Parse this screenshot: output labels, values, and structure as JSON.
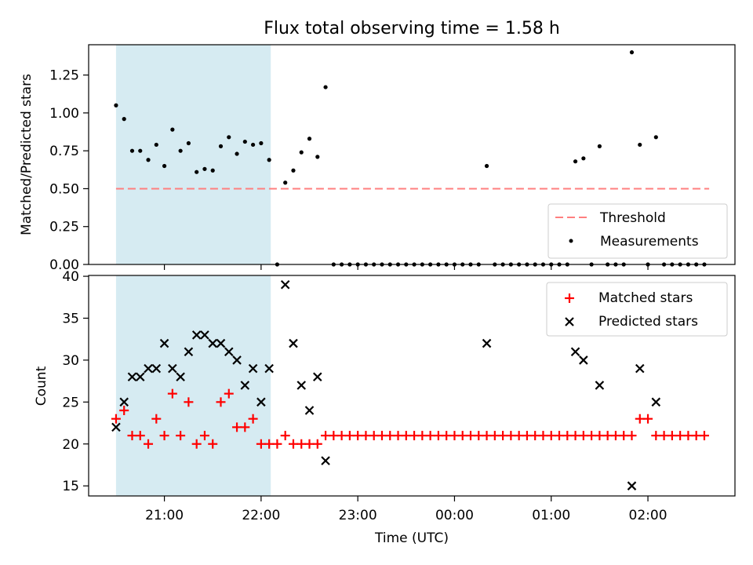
{
  "title": "Flux total observing time = 1.58 h",
  "colors": {
    "shade": "#add8e6",
    "threshold": "#ff7f7f",
    "measurement": "#000000",
    "matched": "#ff0000",
    "predicted": "#000000"
  },
  "chart_data": [
    {
      "type": "scatter",
      "ylabel": "Matched/Predicted stars",
      "ylim": [
        0,
        1.45
      ],
      "yticks": [
        "0.00",
        "0.25",
        "0.50",
        "0.75",
        "1.00",
        "1.25"
      ],
      "shade_x": [
        "20:30",
        "22:06"
      ],
      "threshold": {
        "name": "Threshold",
        "y": 0.5,
        "x": [
          "20:30",
          "02:38"
        ]
      },
      "legend": {
        "position": "lower right",
        "entries": [
          "Threshold",
          "Measurements"
        ]
      },
      "series": [
        {
          "name": "Measurements",
          "points": [
            [
              "20:30",
              1.05
            ],
            [
              "20:35",
              0.96
            ],
            [
              "20:40",
              0.75
            ],
            [
              "20:45",
              0.75
            ],
            [
              "20:50",
              0.69
            ],
            [
              "20:55",
              0.79
            ],
            [
              "21:00",
              0.65
            ],
            [
              "21:05",
              0.89
            ],
            [
              "21:10",
              0.75
            ],
            [
              "21:15",
              0.8
            ],
            [
              "21:20",
              0.61
            ],
            [
              "21:25",
              0.63
            ],
            [
              "21:30",
              0.62
            ],
            [
              "21:35",
              0.78
            ],
            [
              "21:40",
              0.84
            ],
            [
              "21:45",
              0.73
            ],
            [
              "21:50",
              0.81
            ],
            [
              "21:55",
              0.79
            ],
            [
              "22:00",
              0.8
            ],
            [
              "22:05",
              0.69
            ],
            [
              "22:10",
              0.0
            ],
            [
              "22:15",
              0.54
            ],
            [
              "22:20",
              0.62
            ],
            [
              "22:25",
              0.74
            ],
            [
              "22:30",
              0.83
            ],
            [
              "22:35",
              0.71
            ],
            [
              "22:40",
              1.17
            ],
            [
              "22:45",
              0.0
            ],
            [
              "22:50",
              0.0
            ],
            [
              "22:55",
              0.0
            ],
            [
              "23:00",
              0.0
            ],
            [
              "23:05",
              0.0
            ],
            [
              "23:10",
              0.0
            ],
            [
              "23:15",
              0.0
            ],
            [
              "23:20",
              0.0
            ],
            [
              "23:25",
              0.0
            ],
            [
              "23:30",
              0.0
            ],
            [
              "23:35",
              0.0
            ],
            [
              "23:40",
              0.0
            ],
            [
              "23:45",
              0.0
            ],
            [
              "23:50",
              0.0
            ],
            [
              "23:55",
              0.0
            ],
            [
              "00:00",
              0.0
            ],
            [
              "00:05",
              0.0
            ],
            [
              "00:10",
              0.0
            ],
            [
              "00:15",
              0.0
            ],
            [
              "00:20",
              0.65
            ],
            [
              "00:25",
              0.0
            ],
            [
              "00:30",
              0.0
            ],
            [
              "00:35",
              0.0
            ],
            [
              "00:40",
              0.0
            ],
            [
              "00:45",
              0.0
            ],
            [
              "00:50",
              0.0
            ],
            [
              "00:55",
              0.0
            ],
            [
              "01:00",
              0.0
            ],
            [
              "01:05",
              0.0
            ],
            [
              "01:10",
              0.0
            ],
            [
              "01:15",
              0.68
            ],
            [
              "01:20",
              0.7
            ],
            [
              "01:25",
              0.0
            ],
            [
              "01:30",
              0.78
            ],
            [
              "01:35",
              0.0
            ],
            [
              "01:40",
              0.0
            ],
            [
              "01:45",
              0.0
            ],
            [
              "01:50",
              1.4
            ],
            [
              "01:55",
              0.79
            ],
            [
              "02:00",
              0.0
            ],
            [
              "02:05",
              0.84
            ],
            [
              "02:10",
              0.0
            ],
            [
              "02:15",
              0.0
            ],
            [
              "02:20",
              0.0
            ],
            [
              "02:25",
              0.0
            ],
            [
              "02:30",
              0.0
            ],
            [
              "02:35",
              0.0
            ]
          ]
        }
      ]
    },
    {
      "type": "scatter",
      "xlabel": "Time (UTC)",
      "ylabel": "Count",
      "ylim": [
        13.8,
        40.1
      ],
      "yticks": [
        "15",
        "20",
        "25",
        "30",
        "35",
        "40"
      ],
      "xticks": [
        "21:00",
        "22:00",
        "23:00",
        "00:00",
        "01:00",
        "02:00"
      ],
      "xlim": [
        "20:13",
        "02:54"
      ],
      "shade_x": [
        "20:30",
        "22:06"
      ],
      "legend": {
        "position": "upper right",
        "entries": [
          "Matched stars",
          "Predicted stars"
        ]
      },
      "series": [
        {
          "name": "Matched stars",
          "marker": "+",
          "points": [
            [
              "20:30",
              23
            ],
            [
              "20:35",
              24
            ],
            [
              "20:40",
              21
            ],
            [
              "20:45",
              21
            ],
            [
              "20:50",
              20
            ],
            [
              "20:55",
              23
            ],
            [
              "21:00",
              21
            ],
            [
              "21:05",
              26
            ],
            [
              "21:10",
              21
            ],
            [
              "21:15",
              25
            ],
            [
              "21:20",
              20
            ],
            [
              "21:25",
              21
            ],
            [
              "21:30",
              20
            ],
            [
              "21:35",
              25
            ],
            [
              "21:40",
              26
            ],
            [
              "21:45",
              22
            ],
            [
              "21:50",
              22
            ],
            [
              "21:55",
              23
            ],
            [
              "22:00",
              20
            ],
            [
              "22:05",
              20
            ],
            [
              "22:10",
              20
            ],
            [
              "22:15",
              21
            ],
            [
              "22:20",
              20
            ],
            [
              "22:25",
              20
            ],
            [
              "22:30",
              20
            ],
            [
              "22:35",
              20
            ],
            [
              "22:40",
              21
            ],
            [
              "22:45",
              21
            ],
            [
              "22:50",
              21
            ],
            [
              "22:55",
              21
            ],
            [
              "23:00",
              21
            ],
            [
              "23:05",
              21
            ],
            [
              "23:10",
              21
            ],
            [
              "23:15",
              21
            ],
            [
              "23:20",
              21
            ],
            [
              "23:25",
              21
            ],
            [
              "23:30",
              21
            ],
            [
              "23:35",
              21
            ],
            [
              "23:40",
              21
            ],
            [
              "23:45",
              21
            ],
            [
              "23:50",
              21
            ],
            [
              "23:55",
              21
            ],
            [
              "00:00",
              21
            ],
            [
              "00:05",
              21
            ],
            [
              "00:10",
              21
            ],
            [
              "00:15",
              21
            ],
            [
              "00:20",
              21
            ],
            [
              "00:25",
              21
            ],
            [
              "00:30",
              21
            ],
            [
              "00:35",
              21
            ],
            [
              "00:40",
              21
            ],
            [
              "00:45",
              21
            ],
            [
              "00:50",
              21
            ],
            [
              "00:55",
              21
            ],
            [
              "01:00",
              21
            ],
            [
              "01:05",
              21
            ],
            [
              "01:10",
              21
            ],
            [
              "01:15",
              21
            ],
            [
              "01:20",
              21
            ],
            [
              "01:25",
              21
            ],
            [
              "01:30",
              21
            ],
            [
              "01:35",
              21
            ],
            [
              "01:40",
              21
            ],
            [
              "01:45",
              21
            ],
            [
              "01:50",
              21
            ],
            [
              "01:55",
              23
            ],
            [
              "02:00",
              23
            ],
            [
              "02:05",
              21
            ],
            [
              "02:10",
              21
            ],
            [
              "02:15",
              21
            ],
            [
              "02:20",
              21
            ],
            [
              "02:25",
              21
            ],
            [
              "02:30",
              21
            ],
            [
              "02:35",
              21
            ]
          ]
        },
        {
          "name": "Predicted stars",
          "marker": "x",
          "points": [
            [
              "20:30",
              22
            ],
            [
              "20:35",
              25
            ],
            [
              "20:40",
              28
            ],
            [
              "20:45",
              28
            ],
            [
              "20:50",
              29
            ],
            [
              "20:55",
              29
            ],
            [
              "21:00",
              32
            ],
            [
              "21:05",
              29
            ],
            [
              "21:10",
              28
            ],
            [
              "21:15",
              31
            ],
            [
              "21:20",
              33
            ],
            [
              "21:25",
              33
            ],
            [
              "21:30",
              32
            ],
            [
              "21:35",
              32
            ],
            [
              "21:40",
              31
            ],
            [
              "21:45",
              30
            ],
            [
              "21:50",
              27
            ],
            [
              "21:55",
              29
            ],
            [
              "22:00",
              25
            ],
            [
              "22:05",
              29
            ],
            [
              "22:15",
              39
            ],
            [
              "22:20",
              32
            ],
            [
              "22:25",
              27
            ],
            [
              "22:30",
              24
            ],
            [
              "22:35",
              28
            ],
            [
              "22:40",
              18
            ],
            [
              "00:20",
              32
            ],
            [
              "01:15",
              31
            ],
            [
              "01:20",
              30
            ],
            [
              "01:30",
              27
            ],
            [
              "01:50",
              15
            ],
            [
              "01:55",
              29
            ],
            [
              "02:05",
              25
            ]
          ]
        }
      ]
    }
  ]
}
